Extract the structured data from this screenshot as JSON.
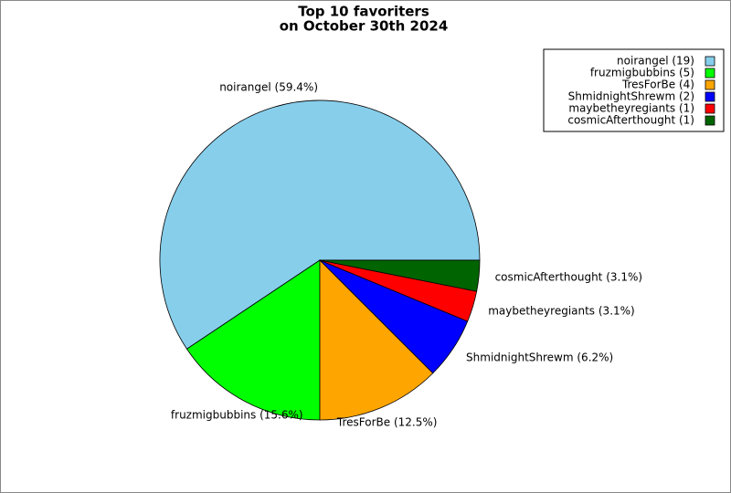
{
  "chart_data": {
    "type": "pie",
    "title_lines": [
      "Top 10 favoriters",
      "on October 30th 2024"
    ],
    "categories": [
      "noirangel",
      "fruzmigbubbins",
      "TresForBe",
      "ShmidnightShrewm",
      "maybetheyregiants",
      "cosmicAfterthought"
    ],
    "values": [
      19,
      5,
      4,
      2,
      1,
      1
    ],
    "slice_labels": [
      "noirangel (59.4%)",
      "fruzmigbubbins (15.6%)",
      "TresForBe (12.5%)",
      "ShmidnightShrewm (6.2%)",
      "maybetheyregiants (3.1%)",
      "cosmicAfterthought (3.1%)"
    ],
    "legend_labels": [
      "noirangel (19)",
      "fruzmigbubbins (5)",
      "TresForBe (4)",
      "ShmidnightShrewm (2)",
      "maybetheyregiants (1)",
      "cosmicAfterthought (1)"
    ],
    "colors": [
      "#87ceeb",
      "#00ff00",
      "#ffa500",
      "#0000ff",
      "#ff0000",
      "#006400"
    ],
    "legend": "upper right"
  }
}
